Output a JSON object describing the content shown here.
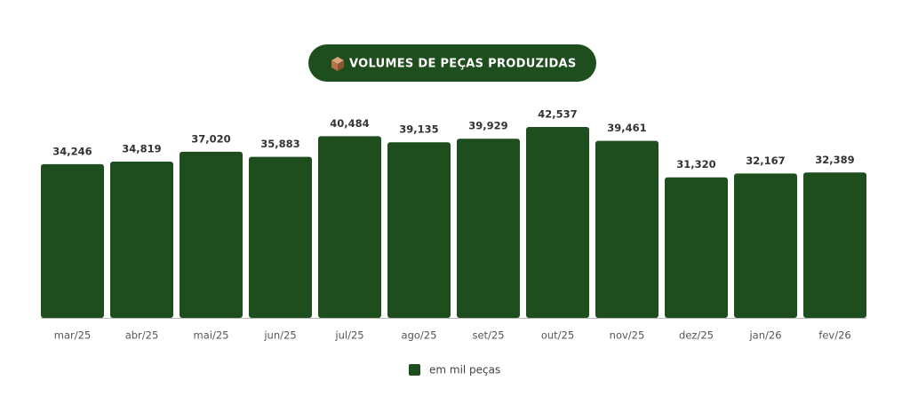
{
  "chart_data": {
    "type": "bar",
    "title": "VOLUMES DE PEÇAS PRODUZIDAS",
    "categories": [
      "mar/25",
      "abr/25",
      "mai/25",
      "jun/25",
      "jul/25",
      "ago/25",
      "set/25",
      "out/25",
      "nov/25",
      "dez/25",
      "jan/26",
      "fev/26"
    ],
    "series": [
      {
        "name": "em mil peças",
        "color": "#1e4d1e",
        "values": [
          34246,
          34819,
          37020,
          35883,
          40484,
          39135,
          39929,
          42537,
          39461,
          31320,
          32167,
          32389
        ],
        "value_labels": [
          "34,246",
          "34,819",
          "37,020",
          "35,883",
          "40,484",
          "39,135",
          "39,929",
          "42,537",
          "39,461",
          "31,320",
          "32,167",
          "32,389"
        ]
      }
    ]
  }
}
